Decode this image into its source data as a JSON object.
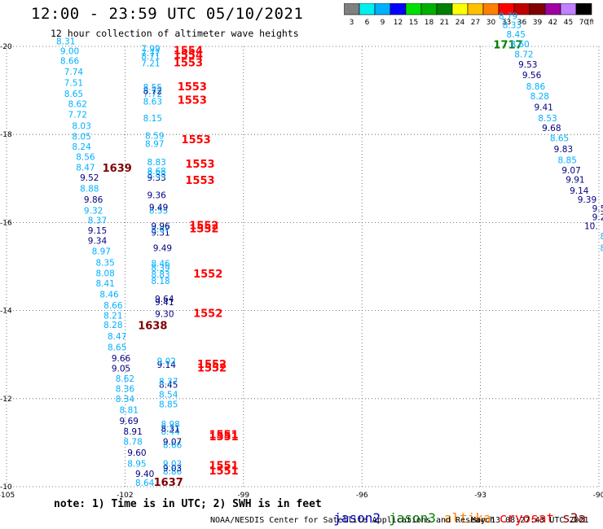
{
  "title": "12:00 - 23:59 UTC 05/10/2021",
  "subtitle": "12 hour collection of altimeter wave heights",
  "colorscale": {
    "colors": [
      "#808080",
      "#00f0f0",
      "#00b0ff",
      "#0000ff",
      "#00e000",
      "#00b000",
      "#008000",
      "#ffff00",
      "#ffc000",
      "#ff8000",
      "#ff0000",
      "#c00000",
      "#800000",
      "#a000a0",
      "#c080ff",
      "#000000"
    ],
    "labels": [
      "3",
      "6",
      "9",
      "12",
      "15",
      "18",
      "21",
      "24",
      "27",
      "30",
      "33",
      "36",
      "39",
      "42",
      "45",
      "70"
    ],
    "unit": "(ft)"
  },
  "satellite_colors": {
    "jason2": "#0000c8",
    "jason3": "#008000",
    "altika": "#ff8000",
    "cryosat": "#ff0000",
    "s3a": "#800000",
    "lt": "#00b0ff",
    "dk": "#000080",
    "cyan": "#0098d0",
    "green": "#008000"
  },
  "note": "note: 1) Time is in UTC; 2) SWH is in feet",
  "satellite_legend": [
    "jason2",
    "jason3",
    "altika",
    "cryosat",
    "s3a"
  ],
  "credit": "NOAA/NESDIS Center for Satellite Applications and Research",
  "timestamp": "May 13 08:27:43 UTC 2021",
  "chart_data": {
    "type": "scatter",
    "title": "12:00 - 23:59 UTC 05/10/2021",
    "xlim": [
      -105,
      -90
    ],
    "ylim": [
      -20,
      -10
    ],
    "xticks": [
      -105,
      -102,
      -99,
      -96,
      -93,
      -90
    ],
    "yticks": [
      -10,
      -12,
      -14,
      -16,
      -18,
      -20
    ],
    "grid": true,
    "series": [
      {
        "name": "cryosat",
        "points": [
          {
            "x": -99.5,
            "y": -10.28,
            "v": "1551",
            "c": "cryosat"
          },
          {
            "x": -99.5,
            "y": -10.4,
            "v": "1551",
            "c": "cryosat"
          },
          {
            "x": -99.5,
            "y": -11.05,
            "v": "1551",
            "c": "cryosat"
          },
          {
            "x": -99.5,
            "y": -11.1,
            "v": "1551",
            "c": "cryosat"
          },
          {
            "x": -99.8,
            "y": -12.62,
            "v": "1552",
            "c": "cryosat"
          },
          {
            "x": -99.8,
            "y": -12.7,
            "v": "1552",
            "c": "cryosat"
          },
          {
            "x": -99.9,
            "y": -13.85,
            "v": "1552",
            "c": "cryosat"
          },
          {
            "x": -99.9,
            "y": -14.75,
            "v": "1552",
            "c": "cryosat"
          },
          {
            "x": -100.0,
            "y": -15.78,
            "v": "1552",
            "c": "cryosat"
          },
          {
            "x": -100.0,
            "y": -15.85,
            "v": "1552",
            "c": "cryosat"
          },
          {
            "x": -100.1,
            "y": -16.88,
            "v": "1553",
            "c": "cryosat"
          },
          {
            "x": -100.1,
            "y": -17.25,
            "v": "1553",
            "c": "cryosat"
          },
          {
            "x": -100.2,
            "y": -17.8,
            "v": "1553",
            "c": "cryosat"
          },
          {
            "x": -100.3,
            "y": -18.7,
            "v": "1553",
            "c": "cryosat"
          },
          {
            "x": -100.3,
            "y": -19.0,
            "v": "1553",
            "c": "cryosat"
          },
          {
            "x": -100.4,
            "y": -19.55,
            "v": "1553",
            "c": "cryosat"
          },
          {
            "x": -100.4,
            "y": -19.72,
            "v": "1554",
            "c": "cryosat"
          },
          {
            "x": -100.4,
            "y": -19.82,
            "v": "1554",
            "c": "cryosat"
          }
        ]
      },
      {
        "name": "s3a",
        "points": [
          {
            "x": -100.9,
            "y": -10.02,
            "v": "1637",
            "c": "s3a"
          },
          {
            "x": -101.3,
            "y": -13.58,
            "v": "1638",
            "c": "s3a"
          },
          {
            "x": -102.2,
            "y": -17.15,
            "v": "1639",
            "c": "s3a"
          }
        ]
      },
      {
        "name": "jason3",
        "points": [
          {
            "x": -92.3,
            "y": -19.95,
            "v": "1717",
            "c": "jason3"
          }
        ]
      },
      {
        "name": "wave heights",
        "points": [
          {
            "x": -101.5,
            "y": -10.02,
            "v": "8.64",
            "c": "lt"
          },
          {
            "x": -101.5,
            "y": -10.22,
            "v": "9.40",
            "c": "dk"
          },
          {
            "x": -101.7,
            "y": -10.45,
            "v": "8.95",
            "c": "lt"
          },
          {
            "x": -101.7,
            "y": -10.7,
            "v": "9.60",
            "c": "dk"
          },
          {
            "x": -101.8,
            "y": -10.95,
            "v": "8.78",
            "c": "lt"
          },
          {
            "x": -101.8,
            "y": -11.18,
            "v": "8.91",
            "c": "dk"
          },
          {
            "x": -101.9,
            "y": -11.42,
            "v": "9.69",
            "c": "dk"
          },
          {
            "x": -101.9,
            "y": -11.67,
            "v": "8.81",
            "c": "lt"
          },
          {
            "x": -102.0,
            "y": -11.92,
            "v": "8.34",
            "c": "lt"
          },
          {
            "x": -102.0,
            "y": -12.15,
            "v": "8.36",
            "c": "lt"
          },
          {
            "x": -102.0,
            "y": -12.38,
            "v": "8.62",
            "c": "lt"
          },
          {
            "x": -102.1,
            "y": -12.62,
            "v": "9.05",
            "c": "dk"
          },
          {
            "x": -102.1,
            "y": -12.85,
            "v": "9.66",
            "c": "dk"
          },
          {
            "x": -102.2,
            "y": -13.1,
            "v": "8.65",
            "c": "lt"
          },
          {
            "x": -102.2,
            "y": -13.35,
            "v": "8.47",
            "c": "lt"
          },
          {
            "x": -102.3,
            "y": -13.6,
            "v": "8.28",
            "c": "lt"
          },
          {
            "x": -102.3,
            "y": -13.82,
            "v": "8.21",
            "c": "lt"
          },
          {
            "x": -102.3,
            "y": -14.05,
            "v": "8.66",
            "c": "lt"
          },
          {
            "x": -102.4,
            "y": -14.3,
            "v": "8.46",
            "c": "lt"
          },
          {
            "x": -102.5,
            "y": -14.55,
            "v": "8.41",
            "c": "lt"
          },
          {
            "x": -102.5,
            "y": -14.78,
            "v": "8.08",
            "c": "lt"
          },
          {
            "x": -102.5,
            "y": -15.02,
            "v": "8.35",
            "c": "lt"
          },
          {
            "x": -102.6,
            "y": -15.28,
            "v": "8.97",
            "c": "lt"
          },
          {
            "x": -102.7,
            "y": -15.52,
            "v": "9.34",
            "c": "dk"
          },
          {
            "x": -102.7,
            "y": -15.75,
            "v": "9.15",
            "c": "dk"
          },
          {
            "x": -102.7,
            "y": -15.98,
            "v": "8.37",
            "c": "lt"
          },
          {
            "x": -102.8,
            "y": -16.2,
            "v": "9.32",
            "c": "lt"
          },
          {
            "x": -102.8,
            "y": -16.45,
            "v": "9.86",
            "c": "dk"
          },
          {
            "x": -102.9,
            "y": -16.7,
            "v": "8.88",
            "c": "lt"
          },
          {
            "x": -102.9,
            "y": -16.95,
            "v": "9.52",
            "c": "dk"
          },
          {
            "x": -103.0,
            "y": -17.18,
            "v": "8.47",
            "c": "lt"
          },
          {
            "x": -103.0,
            "y": -17.42,
            "v": "8.56",
            "c": "lt"
          },
          {
            "x": -103.1,
            "y": -17.65,
            "v": "8.24",
            "c": "lt"
          },
          {
            "x": -103.1,
            "y": -17.88,
            "v": "8.05",
            "c": "lt"
          },
          {
            "x": -103.1,
            "y": -18.12,
            "v": "8.03",
            "c": "lt"
          },
          {
            "x": -103.2,
            "y": -18.38,
            "v": "7.72",
            "c": "lt"
          },
          {
            "x": -103.2,
            "y": -18.62,
            "v": "8.62",
            "c": "lt"
          },
          {
            "x": -103.3,
            "y": -18.85,
            "v": "8.65",
            "c": "lt"
          },
          {
            "x": -103.3,
            "y": -19.1,
            "v": "7.51",
            "c": "lt"
          },
          {
            "x": -103.3,
            "y": -19.35,
            "v": "7.74",
            "c": "lt"
          },
          {
            "x": -103.4,
            "y": -19.6,
            "v": "8.66",
            "c": "lt"
          },
          {
            "x": -103.4,
            "y": -19.82,
            "v": "9.00",
            "c": "lt"
          },
          {
            "x": -103.5,
            "y": -20.05,
            "v": "8.31",
            "c": "lt"
          },
          {
            "x": -100.8,
            "y": -10.28,
            "v": "8.86",
            "c": "lt"
          },
          {
            "x": -100.8,
            "y": -10.35,
            "v": "9.03",
            "c": "dk"
          },
          {
            "x": -100.8,
            "y": -10.45,
            "v": "9.03",
            "c": "lt"
          },
          {
            "x": -100.8,
            "y": -10.88,
            "v": "8.66",
            "c": "lt"
          },
          {
            "x": -100.8,
            "y": -10.95,
            "v": "9.07",
            "c": "dk"
          },
          {
            "x": -100.85,
            "y": -11.18,
            "v": "8.44",
            "c": "lt"
          },
          {
            "x": -100.85,
            "y": -11.25,
            "v": "8.31",
            "c": "dk"
          },
          {
            "x": -100.85,
            "y": -11.35,
            "v": "8.98",
            "c": "lt"
          },
          {
            "x": -100.9,
            "y": -11.8,
            "v": "8.85",
            "c": "lt"
          },
          {
            "x": -100.9,
            "y": -12.02,
            "v": "8.54",
            "c": "lt"
          },
          {
            "x": -100.9,
            "y": -12.25,
            "v": "8.45",
            "c": "dk"
          },
          {
            "x": -100.9,
            "y": -12.32,
            "v": "8.37",
            "c": "lt"
          },
          {
            "x": -100.95,
            "y": -12.7,
            "v": "9.14",
            "c": "dk"
          },
          {
            "x": -100.95,
            "y": -12.78,
            "v": "9.02",
            "c": "lt"
          },
          {
            "x": -101.0,
            "y": -13.85,
            "v": "9.30",
            "c": "dk"
          },
          {
            "x": -101.0,
            "y": -14.12,
            "v": "9.41",
            "c": "dk"
          },
          {
            "x": -101.0,
            "y": -14.2,
            "v": "9.64",
            "c": "dk"
          },
          {
            "x": -101.1,
            "y": -14.6,
            "v": "8.18",
            "c": "lt"
          },
          {
            "x": -101.1,
            "y": -14.75,
            "v": "8.83",
            "c": "lt"
          },
          {
            "x": -101.1,
            "y": -14.9,
            "v": "8.39",
            "c": "lt"
          },
          {
            "x": -101.1,
            "y": -15.0,
            "v": "8.46",
            "c": "lt"
          },
          {
            "x": -101.05,
            "y": -15.35,
            "v": "9.49",
            "c": "dk"
          },
          {
            "x": -101.1,
            "y": -15.7,
            "v": "9.31",
            "c": "dk"
          },
          {
            "x": -101.1,
            "y": -15.78,
            "v": "8.67",
            "c": "lt"
          },
          {
            "x": -101.1,
            "y": -15.85,
            "v": "9.96",
            "c": "dk"
          },
          {
            "x": -101.15,
            "y": -16.2,
            "v": "8.55",
            "c": "lt"
          },
          {
            "x": -101.15,
            "y": -16.28,
            "v": "9.49",
            "c": "dk"
          },
          {
            "x": -101.2,
            "y": -16.55,
            "v": "9.36",
            "c": "dk"
          },
          {
            "x": -101.2,
            "y": -16.95,
            "v": "9.33",
            "c": "dk"
          },
          {
            "x": -101.2,
            "y": -17.02,
            "v": "8.88",
            "c": "lt"
          },
          {
            "x": -101.2,
            "y": -17.1,
            "v": "8.68",
            "c": "lt"
          },
          {
            "x": -101.2,
            "y": -17.3,
            "v": "8.83",
            "c": "lt"
          },
          {
            "x": -101.25,
            "y": -17.72,
            "v": "8.97",
            "c": "lt"
          },
          {
            "x": -101.25,
            "y": -17.9,
            "v": "8.59",
            "c": "lt"
          },
          {
            "x": -101.3,
            "y": -18.3,
            "v": "8.15",
            "c": "lt"
          },
          {
            "x": -101.3,
            "y": -18.68,
            "v": "8.63",
            "c": "lt"
          },
          {
            "x": -101.3,
            "y": -18.85,
            "v": "7.72",
            "c": "lt"
          },
          {
            "x": -101.3,
            "y": -18.92,
            "v": "8.72",
            "c": "dk"
          },
          {
            "x": -101.3,
            "y": -19.0,
            "v": "8.55",
            "c": "lt"
          },
          {
            "x": -101.35,
            "y": -19.55,
            "v": "7.21",
            "c": "lt"
          },
          {
            "x": -101.35,
            "y": -19.7,
            "v": "8.71",
            "c": "lt"
          },
          {
            "x": -101.35,
            "y": -19.78,
            "v": "7.77",
            "c": "lt"
          },
          {
            "x": -101.35,
            "y": -19.88,
            "v": "7.99",
            "c": "lt"
          },
          {
            "x": -89.9,
            "y": -15.35,
            "v": "8",
            "c": "lt"
          },
          {
            "x": -89.9,
            "y": -15.62,
            "v": "8",
            "c": "lt"
          },
          {
            "x": -90.2,
            "y": -15.85,
            "v": "10.",
            "c": "dk"
          },
          {
            "x": -90.0,
            "y": -16.05,
            "v": "9.2",
            "c": "dk"
          },
          {
            "x": -90.0,
            "y": -16.25,
            "v": "9.5",
            "c": "dk"
          },
          {
            "x": -90.3,
            "y": -16.45,
            "v": "9.39",
            "c": "dk"
          },
          {
            "x": -90.5,
            "y": -16.65,
            "v": "9.14",
            "c": "dk"
          },
          {
            "x": -90.6,
            "y": -16.9,
            "v": "9.91",
            "c": "dk"
          },
          {
            "x": -90.7,
            "y": -17.12,
            "v": "9.07",
            "c": "dk"
          },
          {
            "x": -90.8,
            "y": -17.35,
            "v": "8.85",
            "c": "lt"
          },
          {
            "x": -90.9,
            "y": -17.6,
            "v": "9.83",
            "c": "dk"
          },
          {
            "x": -91.0,
            "y": -17.85,
            "v": "8.65",
            "c": "lt"
          },
          {
            "x": -91.2,
            "y": -18.08,
            "v": "9.68",
            "c": "dk"
          },
          {
            "x": -91.3,
            "y": -18.3,
            "v": "8.53",
            "c": "lt"
          },
          {
            "x": -91.4,
            "y": -18.55,
            "v": "9.41",
            "c": "dk"
          },
          {
            "x": -91.5,
            "y": -18.8,
            "v": "8.28",
            "c": "lt"
          },
          {
            "x": -91.6,
            "y": -19.02,
            "v": "8.86",
            "c": "lt"
          },
          {
            "x": -91.7,
            "y": -19.28,
            "v": "9.56",
            "c": "dk"
          },
          {
            "x": -91.8,
            "y": -19.52,
            "v": "9.53",
            "c": "dk"
          },
          {
            "x": -91.9,
            "y": -19.75,
            "v": "8.72",
            "c": "lt"
          },
          {
            "x": -92.0,
            "y": -19.98,
            "v": "8.60",
            "c": "lt"
          },
          {
            "x": -92.1,
            "y": -20.2,
            "v": "8.45",
            "c": "lt"
          },
          {
            "x": -92.2,
            "y": -20.42,
            "v": "8.33",
            "c": "lt"
          },
          {
            "x": -92.3,
            "y": -20.62,
            "v": "8.79",
            "c": "lt"
          }
        ]
      }
    ]
  }
}
